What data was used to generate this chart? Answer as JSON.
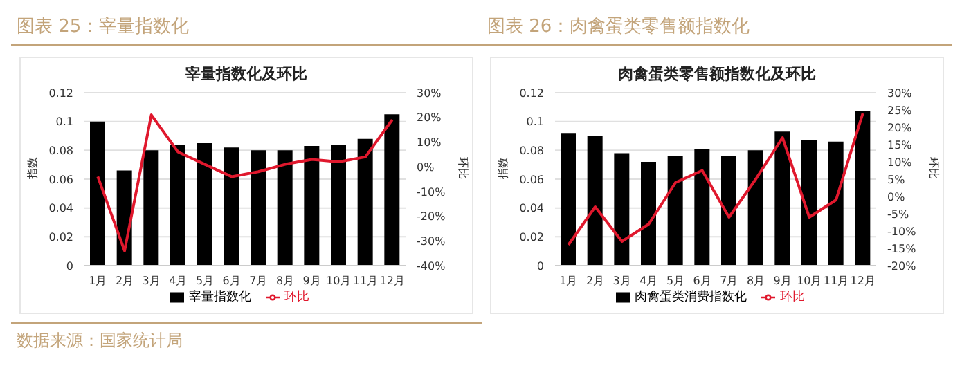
{
  "chart_data": [
    {
      "type": "bar",
      "title": "图表 25：宰量指数化",
      "subtitle": "宰量指数化及环比",
      "ylabel": "指数",
      "y2label": "环比",
      "categories": [
        "1月",
        "2月",
        "3月",
        "4月",
        "5月",
        "6月",
        "7月",
        "8月",
        "9月",
        "10月",
        "11月",
        "12月"
      ],
      "series": [
        {
          "name": "宰量指数化",
          "color": "#000000",
          "values": [
            0.1,
            0.066,
            0.08,
            0.084,
            0.085,
            0.082,
            0.08,
            0.08,
            0.083,
            0.084,
            0.088,
            0.105
          ]
        },
        {
          "name": "环比",
          "type": "line",
          "axis": "y2",
          "color": "#e0182d",
          "values": [
            -4,
            -34,
            21,
            6,
            1,
            -4,
            -2,
            1,
            3,
            2,
            4,
            19
          ]
        }
      ],
      "ylim": [
        0,
        0.12
      ],
      "yticks": [
        0,
        0.02,
        0.04,
        0.06,
        0.08,
        0.1,
        0.12
      ],
      "y2lim": [
        -40,
        30
      ],
      "y2ticks": [
        {
          "value": -40,
          "label": "-40%"
        },
        {
          "value": -30,
          "label": "-30%"
        },
        {
          "value": -20,
          "label": "-20%"
        },
        {
          "value": -10,
          "label": "-10%"
        },
        {
          "value": 0,
          "label": "0%"
        },
        {
          "value": 10,
          "label": "10%"
        },
        {
          "value": 20,
          "label": "20%"
        },
        {
          "value": 30,
          "label": "30%"
        }
      ],
      "grid": "y",
      "legend": "bottom",
      "marker": "none",
      "annotations": [
        "数据来源：国家统计局"
      ]
    },
    {
      "type": "bar",
      "title": "图表 26：肉禽蛋类零售额指数化",
      "subtitle": "肉禽蛋类零售额指数化及环比",
      "ylabel": "指数",
      "y2label": "环比",
      "categories": [
        "1月",
        "2月",
        "3月",
        "4月",
        "5月",
        "6月",
        "7月",
        "8月",
        "9月",
        "10月",
        "11月",
        "12月"
      ],
      "series": [
        {
          "name": "肉禽蛋类消费指数化",
          "color": "#000000",
          "values": [
            0.092,
            0.09,
            0.078,
            0.072,
            0.076,
            0.081,
            0.076,
            0.08,
            0.093,
            0.087,
            0.086,
            0.107
          ]
        },
        {
          "name": "环比",
          "type": "line",
          "axis": "y2",
          "color": "#e0182d",
          "values": [
            -14,
            -3,
            -13,
            -8,
            4,
            7.5,
            -6,
            5,
            17,
            -6,
            -1,
            24
          ]
        }
      ],
      "ylim": [
        0,
        0.12
      ],
      "yticks": [
        0,
        0.02,
        0.04,
        0.06,
        0.08,
        0.1,
        0.12
      ],
      "y2lim": [
        -20,
        30
      ],
      "y2ticks": [
        {
          "value": -20,
          "label": "-20%"
        },
        {
          "value": -15,
          "label": "-15%"
        },
        {
          "value": -10,
          "label": "-10%"
        },
        {
          "value": -5,
          "label": "-5%"
        },
        {
          "value": 0,
          "label": "0%"
        },
        {
          "value": 5,
          "label": "5%"
        },
        {
          "value": 10,
          "label": "10%"
        },
        {
          "value": 15,
          "label": "15%"
        },
        {
          "value": 20,
          "label": "20%"
        },
        {
          "value": 25,
          "label": "25%"
        },
        {
          "value": 30,
          "label": "30%"
        }
      ],
      "grid": "y",
      "legend": "bottom",
      "marker": "none"
    }
  ]
}
